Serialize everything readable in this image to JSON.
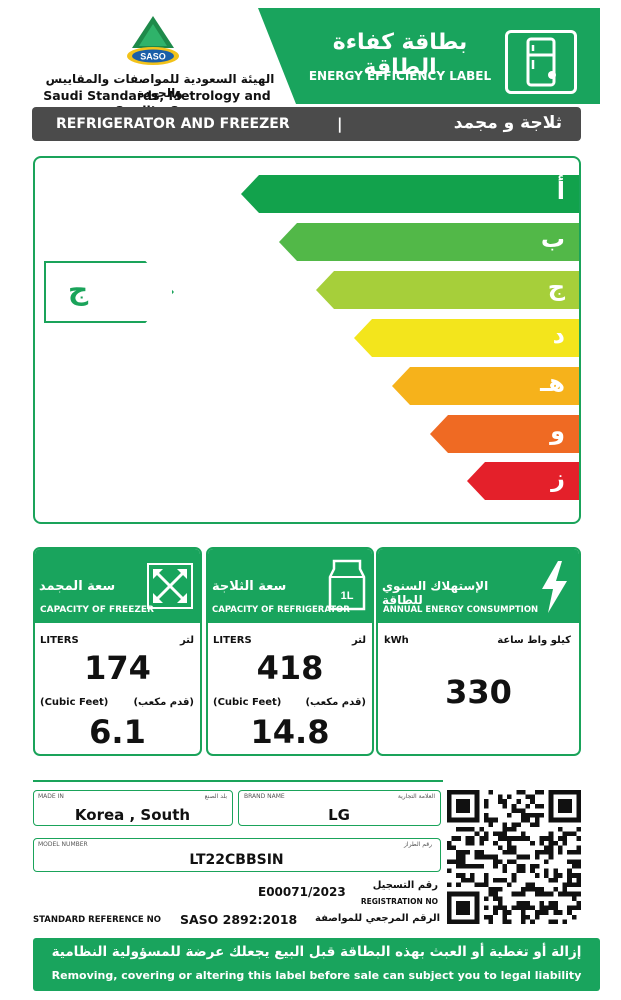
{
  "header": {
    "title_ar": "بطاقة كفاءة الطاقة",
    "title_en": "ENERGY EFFICIENCY LABEL",
    "org_ar": "الهيئة السعودية للمواصفات والمقاييس والجودة",
    "org_en": "Saudi Standards, Metrology and Quality Org.",
    "logo_text": "SASO",
    "brand_color": "#19a45d"
  },
  "product_type": {
    "en": "REFRIGERATOR AND FREEZER",
    "separator": "|",
    "ar": "ثلاجة و مجمد"
  },
  "energy_scale": {
    "classes": [
      {
        "letter": "أ",
        "color": "#12a24c"
      },
      {
        "letter": "ب",
        "color": "#52b848"
      },
      {
        "letter": "ج",
        "color": "#a6cf3a"
      },
      {
        "letter": "د",
        "color": "#f3e51c"
      },
      {
        "letter": "هـ",
        "color": "#f6b21b"
      },
      {
        "letter": "و",
        "color": "#ef6a23"
      },
      {
        "letter": "ز",
        "color": "#e4202a"
      }
    ],
    "rating": "ج"
  },
  "panels": {
    "freezer": {
      "title_ar": "سعة المجمد",
      "title_en": "CAPACITY OF FREEZER",
      "unit_en": "LITERS",
      "unit_ar": "لتر",
      "liters": "174",
      "cubic_en": "(Cubic Feet)",
      "cubic_ar": "(قدم مكعب)",
      "cubic_feet": "6.1",
      "icon": "freezer-arrows-icon"
    },
    "refrigerator": {
      "title_ar": "سعة الثلاجة",
      "title_en": "CAPACITY OF REFRIGERATOR",
      "unit_en": "LITERS",
      "unit_ar": "لتر",
      "liters": "418",
      "cubic_en": "(Cubic Feet)",
      "cubic_ar": "(قدم مكعب)",
      "cubic_feet": "14.8",
      "icon": "milk-carton-icon",
      "icon_text": "1L"
    },
    "energy": {
      "title_ar": "الإستهلاك السنوي للطاقة",
      "title_en": "ANNUAL ENERGY CONSUMPTION",
      "unit_en": "kWh",
      "unit_ar": "كيلو واط ساعة",
      "value": "330",
      "icon": "lightning-bolt-icon"
    }
  },
  "info": {
    "made_in_en": "MADE IN",
    "made_in_ar": "بلد الصنع",
    "made_in": "Korea , South",
    "brand_en": "BRAND NAME",
    "brand_ar": "العلامة التجارية",
    "brand": "LG",
    "model_en": "MODEL NUMBER",
    "model_ar": "رقم الطراز",
    "model": "LT22CBBSIN",
    "registration": "E00071/2023",
    "registration_ar": "رقم التسجيل",
    "registration_en": "REGISTRATION NO",
    "standard_en": "STANDARD REFERENCE NO",
    "standard": "SASO 2892:2018",
    "standard_ar": "الرقم المرجعي للمواصفة"
  },
  "footer": {
    "warning_ar": "إزالة أو تغطية أو العبث بهذه البطاقة قبل البيع يجعلك عرضة للمسؤولية النظامية",
    "warning_en": "Removing, covering or altering this label before sale can subject you to legal liability"
  }
}
